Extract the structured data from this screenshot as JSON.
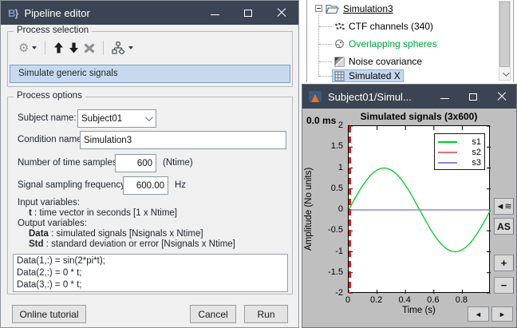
{
  "colors": {
    "titlebar": "#3b4452",
    "selection_bg": "#c8d9ef",
    "selection_border": "#7d9cc6",
    "green_tree_text": "#00a23c",
    "figure_bg": "#bfbfbf",
    "cursor_red": "#cc2222"
  },
  "pipeline_editor": {
    "title": "Pipeline editor",
    "process_selection": {
      "label": "Process selection",
      "selected_process": "Simulate generic signals"
    },
    "process_options": {
      "label": "Process options",
      "subject_name": {
        "label": "Subject name:",
        "value": "Subject01"
      },
      "condition_name": {
        "label": "Condition name:",
        "value": "Simulation3"
      },
      "time_samples": {
        "label": "Number of time samples:",
        "value": "600",
        "suffix": "(Ntime)"
      },
      "sampling_freq": {
        "label": "Signal sampling frequency:",
        "value": "600.00",
        "suffix": "Hz"
      },
      "io_doc": {
        "input_header": "Input variables:",
        "input_t_name": "t",
        "input_t_desc": ": time vector in seconds [1 x Ntime]",
        "output_header": "Output variables:",
        "output_data_name": "Data",
        "output_data_desc": ": simulated signals [Nsignals x Ntime]",
        "output_std_name": "Std",
        "output_std_desc": ": standard deviation or error [Nsignals x Ntime]"
      },
      "code_lines": [
        "Data(1,:) = sin(2*pi*t);",
        "Data(2,:) = 0 * t;",
        "Data(3,:) = 0 * t;"
      ]
    },
    "buttons": {
      "online_tutorial": "Online tutorial",
      "cancel": "Cancel",
      "run": "Run"
    }
  },
  "tree_panel": {
    "root": {
      "label": "Simulation3"
    },
    "items": [
      {
        "label": "CTF channels (340)"
      },
      {
        "label": "Overlapping spheres"
      },
      {
        "label": "Noise covariance"
      },
      {
        "label": "Simulated X"
      }
    ]
  },
  "plot_window": {
    "title": "Subject01/Simul...",
    "time_label": "0.0 ms",
    "side_buttons": {
      "montage": "◄≋",
      "autoscale": "AS",
      "zoom_in": "+",
      "zoom_out": "−"
    },
    "nav_buttons": {
      "prev": "◄",
      "next": "►"
    }
  },
  "chart_data": {
    "type": "line",
    "title": "Simulated signals (3x600)",
    "xlabel": "Time (s)",
    "ylabel": "Amplitude (No units)",
    "xlim": [
      0,
      1
    ],
    "ylim": [
      -2,
      2
    ],
    "xticks": [
      0,
      0.2,
      0.4,
      0.6,
      0.8
    ],
    "yticks": [
      2,
      1.5,
      1,
      0.5,
      0,
      -0.5,
      -1,
      -1.5,
      -2
    ],
    "grid": false,
    "legend_position": "top-right",
    "cursor": {
      "x": 0,
      "color": "#cc2222",
      "style": "dashed"
    },
    "x": [
      0,
      0.025,
      0.05,
      0.075,
      0.1,
      0.125,
      0.15,
      0.175,
      0.2,
      0.225,
      0.25,
      0.275,
      0.3,
      0.325,
      0.35,
      0.375,
      0.4,
      0.425,
      0.45,
      0.475,
      0.5,
      0.525,
      0.55,
      0.575,
      0.6,
      0.625,
      0.65,
      0.675,
      0.7,
      0.725,
      0.75,
      0.775,
      0.8,
      0.825,
      0.85,
      0.875,
      0.9,
      0.925,
      0.95,
      0.975,
      1
    ],
    "series": [
      {
        "name": "s1",
        "color": "#00cc22",
        "values": [
          0,
          0.156,
          0.309,
          0.454,
          0.588,
          0.707,
          0.809,
          0.891,
          0.951,
          0.988,
          1,
          0.988,
          0.951,
          0.891,
          0.809,
          0.707,
          0.588,
          0.454,
          0.309,
          0.156,
          0,
          -0.156,
          -0.309,
          -0.454,
          -0.588,
          -0.707,
          -0.809,
          -0.891,
          -0.951,
          -0.988,
          -1,
          -0.988,
          -0.951,
          -0.891,
          -0.809,
          -0.707,
          -0.588,
          -0.454,
          -0.309,
          -0.156,
          0
        ]
      },
      {
        "name": "s2",
        "color": "#f26b6b",
        "values": [
          0,
          0,
          0,
          0,
          0,
          0,
          0,
          0,
          0,
          0,
          0,
          0,
          0,
          0,
          0,
          0,
          0,
          0,
          0,
          0,
          0,
          0,
          0,
          0,
          0,
          0,
          0,
          0,
          0,
          0,
          0,
          0,
          0,
          0,
          0,
          0,
          0,
          0,
          0,
          0,
          0
        ]
      },
      {
        "name": "s3",
        "color": "#8585ee",
        "values": [
          0,
          0,
          0,
          0,
          0,
          0,
          0,
          0,
          0,
          0,
          0,
          0,
          0,
          0,
          0,
          0,
          0,
          0,
          0,
          0,
          0,
          0,
          0,
          0,
          0,
          0,
          0,
          0,
          0,
          0,
          0,
          0,
          0,
          0,
          0,
          0,
          0,
          0,
          0,
          0,
          0
        ]
      }
    ]
  }
}
